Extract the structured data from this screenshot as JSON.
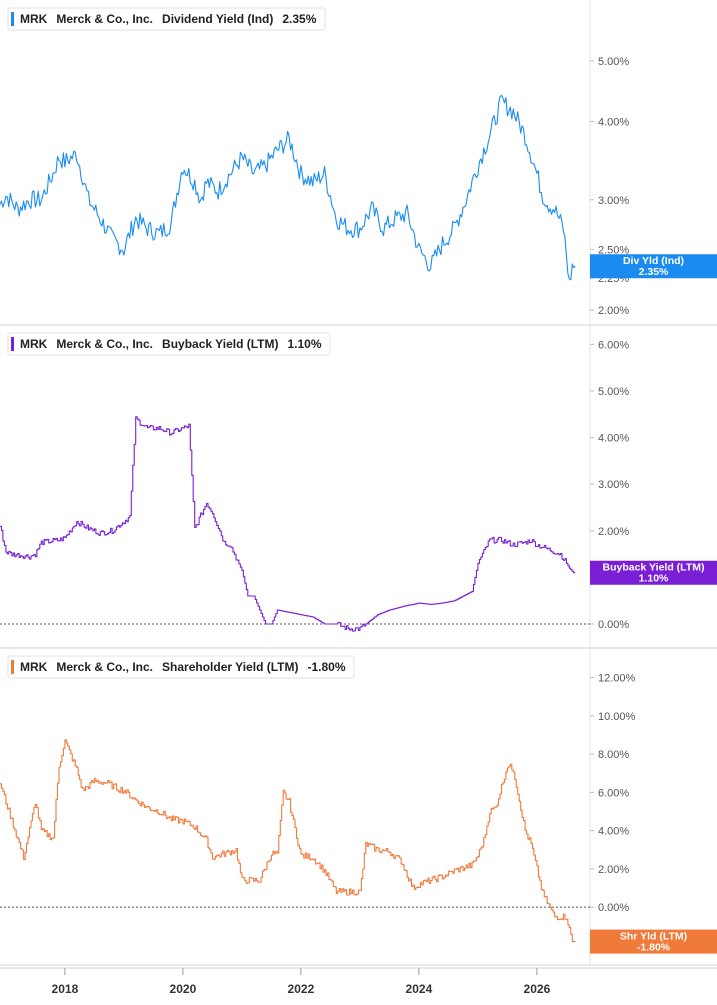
{
  "chart_data": [
    {
      "type": "line",
      "legend": {
        "ticker": "MRK",
        "company": "Merck & Co., Inc.",
        "metric": "Dividend Yield (Ind)",
        "value": "2.35%"
      },
      "badge": {
        "label": "Div Yld (Ind)",
        "value": "2.35%"
      },
      "color": "#1a8cf0",
      "y_scale": "log",
      "ylim": [
        1.95,
        5.6
      ],
      "y_ticks": [
        2.0,
        2.25,
        2.5,
        3.0,
        4.0,
        5.0
      ],
      "y_tick_labels": [
        "2.00%",
        "2.25%",
        "2.50%",
        "3.00%",
        "4.00%",
        "5.00%"
      ],
      "zero_line": false,
      "series": [
        {
          "x": [
            2016.9,
            2017.0,
            2017.2,
            2017.4,
            2017.6,
            2017.8,
            2017.9,
            2018.0,
            2018.2,
            2018.4,
            2018.6,
            2018.8,
            2019.0,
            2019.2,
            2019.4,
            2019.6,
            2019.8,
            2020.0,
            2020.2,
            2020.3,
            2020.4,
            2020.6,
            2020.8,
            2021.0,
            2021.2,
            2021.4,
            2021.6,
            2021.8,
            2022.0,
            2022.2,
            2022.4,
            2022.6,
            2022.8,
            2023.0,
            2023.2,
            2023.4,
            2023.6,
            2023.8,
            2024.0,
            2024.2,
            2024.4,
            2024.6,
            2024.8,
            2025.0,
            2025.2,
            2025.4,
            2025.6,
            2025.8,
            2026.0,
            2026.1,
            2026.2,
            2026.3,
            2026.45,
            2026.55,
            2026.6,
            2026.65
          ],
          "y": [
            2.95,
            3.05,
            2.9,
            3.0,
            3.0,
            3.3,
            3.5,
            3.45,
            3.55,
            3.0,
            2.8,
            2.6,
            2.5,
            2.8,
            2.7,
            2.65,
            2.75,
            3.4,
            3.2,
            3.0,
            3.2,
            3.1,
            3.3,
            3.5,
            3.3,
            3.4,
            3.6,
            3.75,
            3.3,
            3.2,
            3.3,
            2.8,
            2.7,
            2.7,
            2.9,
            2.7,
            2.8,
            2.85,
            2.5,
            2.35,
            2.55,
            2.7,
            3.0,
            3.4,
            3.8,
            4.3,
            4.15,
            3.8,
            3.3,
            3.05,
            2.95,
            2.9,
            2.7,
            2.2,
            2.35,
            2.35
          ]
        }
      ]
    },
    {
      "type": "line",
      "legend": {
        "ticker": "MRK",
        "company": "Merck & Co., Inc.",
        "metric": "Buyback Yield (LTM)",
        "value": "1.10%"
      },
      "badge": {
        "label": "Buyback Yield (LTM)",
        "value": "1.10%"
      },
      "color": "#7a1fd6",
      "y_scale": "linear",
      "ylim": [
        -0.3,
        6.2
      ],
      "y_ticks": [
        0,
        1,
        2,
        3,
        4,
        5,
        6
      ],
      "y_tick_labels": [
        "0.00%",
        "1.00%",
        "2.00%",
        "3.00%",
        "4.00%",
        "5.00%",
        "6.00%"
      ],
      "zero_line": true,
      "series": [
        {
          "x": [
            2016.9,
            2017.0,
            2017.1,
            2017.4,
            2017.5,
            2017.6,
            2017.9,
            2018.0,
            2018.2,
            2018.4,
            2018.6,
            2018.8,
            2018.9,
            2019.0,
            2019.1,
            2019.2,
            2019.4,
            2019.6,
            2019.8,
            2020.0,
            2020.1,
            2020.2,
            2020.4,
            2020.5,
            2020.7,
            2020.8,
            2021.0,
            2021.1,
            2021.2,
            2021.4,
            2021.5,
            2021.6,
            2021.8,
            2022.0,
            2022.2,
            2022.4,
            2022.6,
            2022.8,
            2023.0,
            2023.1,
            2023.3,
            2023.5,
            2023.8,
            2023.9,
            2024.0,
            2024.2,
            2024.4,
            2024.6,
            2024.9,
            2025.0,
            2025.2,
            2025.4,
            2025.5,
            2025.6,
            2025.8,
            2025.9,
            2026.0,
            2026.2,
            2026.4,
            2026.55,
            2026.62,
            2026.65
          ],
          "y": [
            2.1,
            1.55,
            1.5,
            1.45,
            1.5,
            1.75,
            1.8,
            1.85,
            2.2,
            2.05,
            1.95,
            2.0,
            2.1,
            2.2,
            2.3,
            4.4,
            4.2,
            4.2,
            4.1,
            4.2,
            4.25,
            2.05,
            2.6,
            2.4,
            1.75,
            1.7,
            1.15,
            0.6,
            0.6,
            0.0,
            0.0,
            0.3,
            0.25,
            0.2,
            0.15,
            0.0,
            0.0,
            -0.1,
            -0.1,
            0.0,
            0.2,
            0.3,
            0.4,
            0.42,
            0.45,
            0.42,
            0.45,
            0.5,
            0.7,
            1.3,
            1.8,
            1.8,
            1.75,
            1.7,
            1.75,
            1.8,
            1.7,
            1.6,
            1.5,
            1.2,
            1.1,
            1.1
          ]
        }
      ]
    },
    {
      "type": "line",
      "legend": {
        "ticker": "MRK",
        "company": "Merck & Co., Inc.",
        "metric": "Shareholder Yield (LTM)",
        "value": "-1.80%"
      },
      "badge": {
        "label": "Shr Yld (LTM)",
        "value": "-1.80%"
      },
      "color": "#f07a3a",
      "y_scale": "linear",
      "ylim": [
        -2.5,
        12.5
      ],
      "y_ticks": [
        0,
        2,
        4,
        6,
        8,
        10,
        12
      ],
      "y_tick_labels": [
        "0.00%",
        "2.00%",
        "4.00%",
        "6.00%",
        "8.00%",
        "10.00%",
        "12.00%"
      ],
      "zero_line": true,
      "series": [
        {
          "x": [
            2016.9,
            2017.0,
            2017.3,
            2017.5,
            2017.6,
            2017.8,
            2017.9,
            2018.0,
            2018.2,
            2018.3,
            2018.5,
            2018.7,
            2018.9,
            2019.0,
            2019.2,
            2019.4,
            2019.6,
            2019.8,
            2020.0,
            2020.2,
            2020.4,
            2020.5,
            2020.7,
            2020.9,
            2021.0,
            2021.3,
            2021.5,
            2021.6,
            2021.7,
            2021.8,
            2022.0,
            2022.2,
            2022.4,
            2022.6,
            2022.8,
            2023.0,
            2023.1,
            2023.3,
            2023.5,
            2023.7,
            2023.9,
            2024.0,
            2024.2,
            2024.4,
            2024.6,
            2024.9,
            2025.0,
            2025.1,
            2025.2,
            2025.3,
            2025.5,
            2025.6,
            2025.8,
            2025.9,
            2026.0,
            2026.1,
            2026.3,
            2026.5,
            2026.6,
            2026.65
          ],
          "y": [
            6.5,
            5.5,
            2.6,
            5.5,
            4.0,
            3.6,
            7.4,
            8.7,
            7.2,
            6.1,
            6.6,
            6.5,
            6.2,
            6.1,
            5.6,
            5.2,
            5.0,
            4.6,
            4.5,
            4.2,
            3.5,
            2.6,
            2.8,
            3.0,
            1.4,
            1.4,
            2.8,
            2.8,
            6.0,
            5.5,
            2.7,
            2.6,
            1.9,
            0.8,
            0.8,
            0.8,
            3.3,
            3.0,
            2.9,
            2.4,
            1.0,
            1.2,
            1.4,
            1.6,
            1.9,
            2.2,
            2.7,
            3.5,
            5.0,
            5.2,
            7.4,
            7.2,
            4.0,
            3.3,
            2.0,
            0.7,
            -0.5,
            -0.5,
            -1.8,
            -1.8
          ]
        }
      ]
    }
  ],
  "x_axis": {
    "ticks": [
      2018,
      2020,
      2022,
      2024,
      2026
    ],
    "labels": [
      "2018",
      "2020",
      "2022",
      "2024",
      "2026"
    ],
    "xlim": [
      2016.9,
      2026.9
    ]
  }
}
